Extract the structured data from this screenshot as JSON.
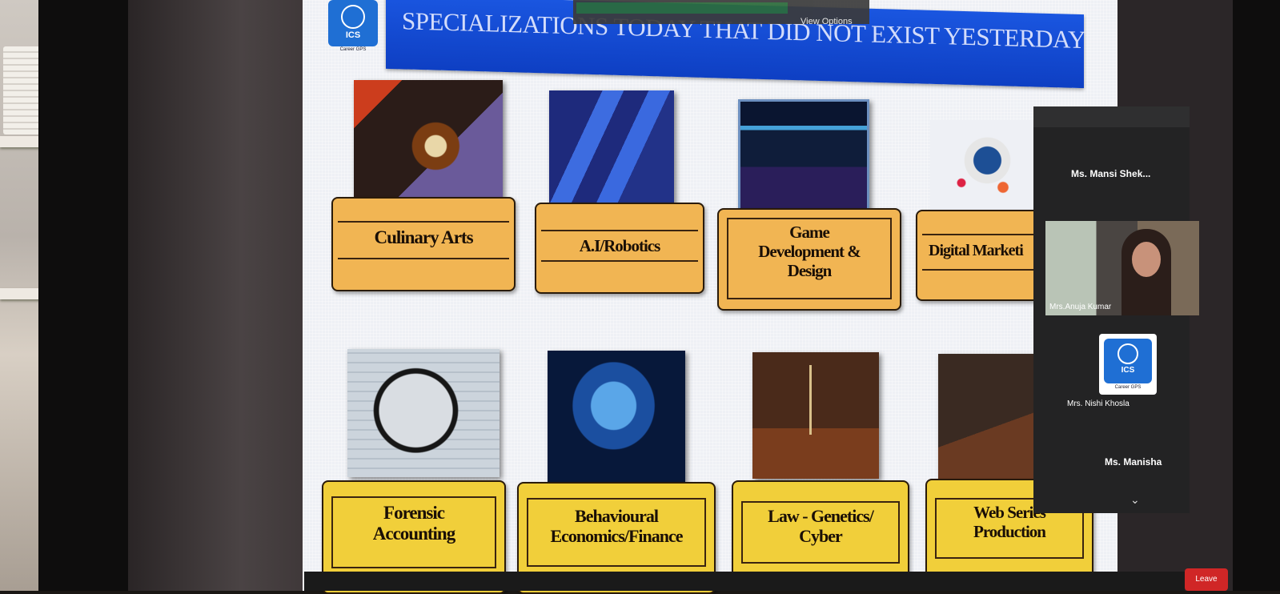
{
  "meeting": {
    "view_options": "View Options",
    "leave_label": "Leave"
  },
  "slide": {
    "logo_text": "ICS",
    "logo_caption": "Career GPS",
    "title": "SPECIALIZATIONS TODAY THAT DID NOT EXIST YESTERDAY",
    "top_row": [
      {
        "label": "Culinary Arts"
      },
      {
        "label": "A.I/Robotics"
      },
      {
        "label": "Game Development & Design"
      },
      {
        "label": "Digital Marketi"
      }
    ],
    "bottom_row": [
      {
        "label": "Forensic Accounting"
      },
      {
        "label": "Behavioural Economics/Finance"
      },
      {
        "label": "Law - Genetics/ Cyber"
      },
      {
        "label": "Web Series Production"
      }
    ]
  },
  "participants": {
    "items": [
      {
        "name": "Ms. Mansi Shek..."
      },
      {
        "name": "Mrs.Anuja Kumar"
      },
      {
        "name": "Mrs. Nishi Khosla"
      },
      {
        "name": "Ms. Manisha"
      }
    ],
    "tile_logo_text": "ICS",
    "tile_logo_caption": "Career GPS"
  },
  "colors": {
    "banner_blue": "#1a56e0",
    "label_orange": "#f1b553",
    "label_yellow": "#f1cf3a",
    "logo_blue": "#1f6fd4"
  }
}
